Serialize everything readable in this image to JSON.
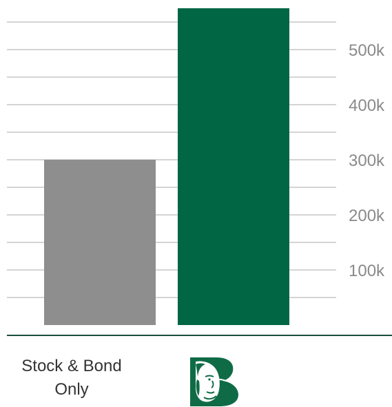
{
  "chart_data": {
    "type": "bar",
    "categories": [
      "Stock & Bond Only",
      ""
    ],
    "values": [
      300000,
      575000
    ],
    "ylim": [
      0,
      575000
    ],
    "yticks": [
      100000,
      200000,
      300000,
      400000,
      500000
    ],
    "ytick_labels": [
      "100k",
      "200k",
      "300k",
      "400k",
      "500k"
    ],
    "grid": true,
    "xlabel": "",
    "ylabel": "",
    "title": ""
  },
  "colors": {
    "bar_1": "#8e8e8e",
    "bar_2": "#006644",
    "grid": "#d4d4d4",
    "baseline": "#1b4d3e",
    "tick_text": "#8a8a8a",
    "label_text": "#333333"
  },
  "labels": {
    "category_1_line_1": "Stock & Bond",
    "category_1_line_2": "Only"
  },
  "icons": {
    "category_2": "benjamin-franklin-b-logo-icon"
  }
}
